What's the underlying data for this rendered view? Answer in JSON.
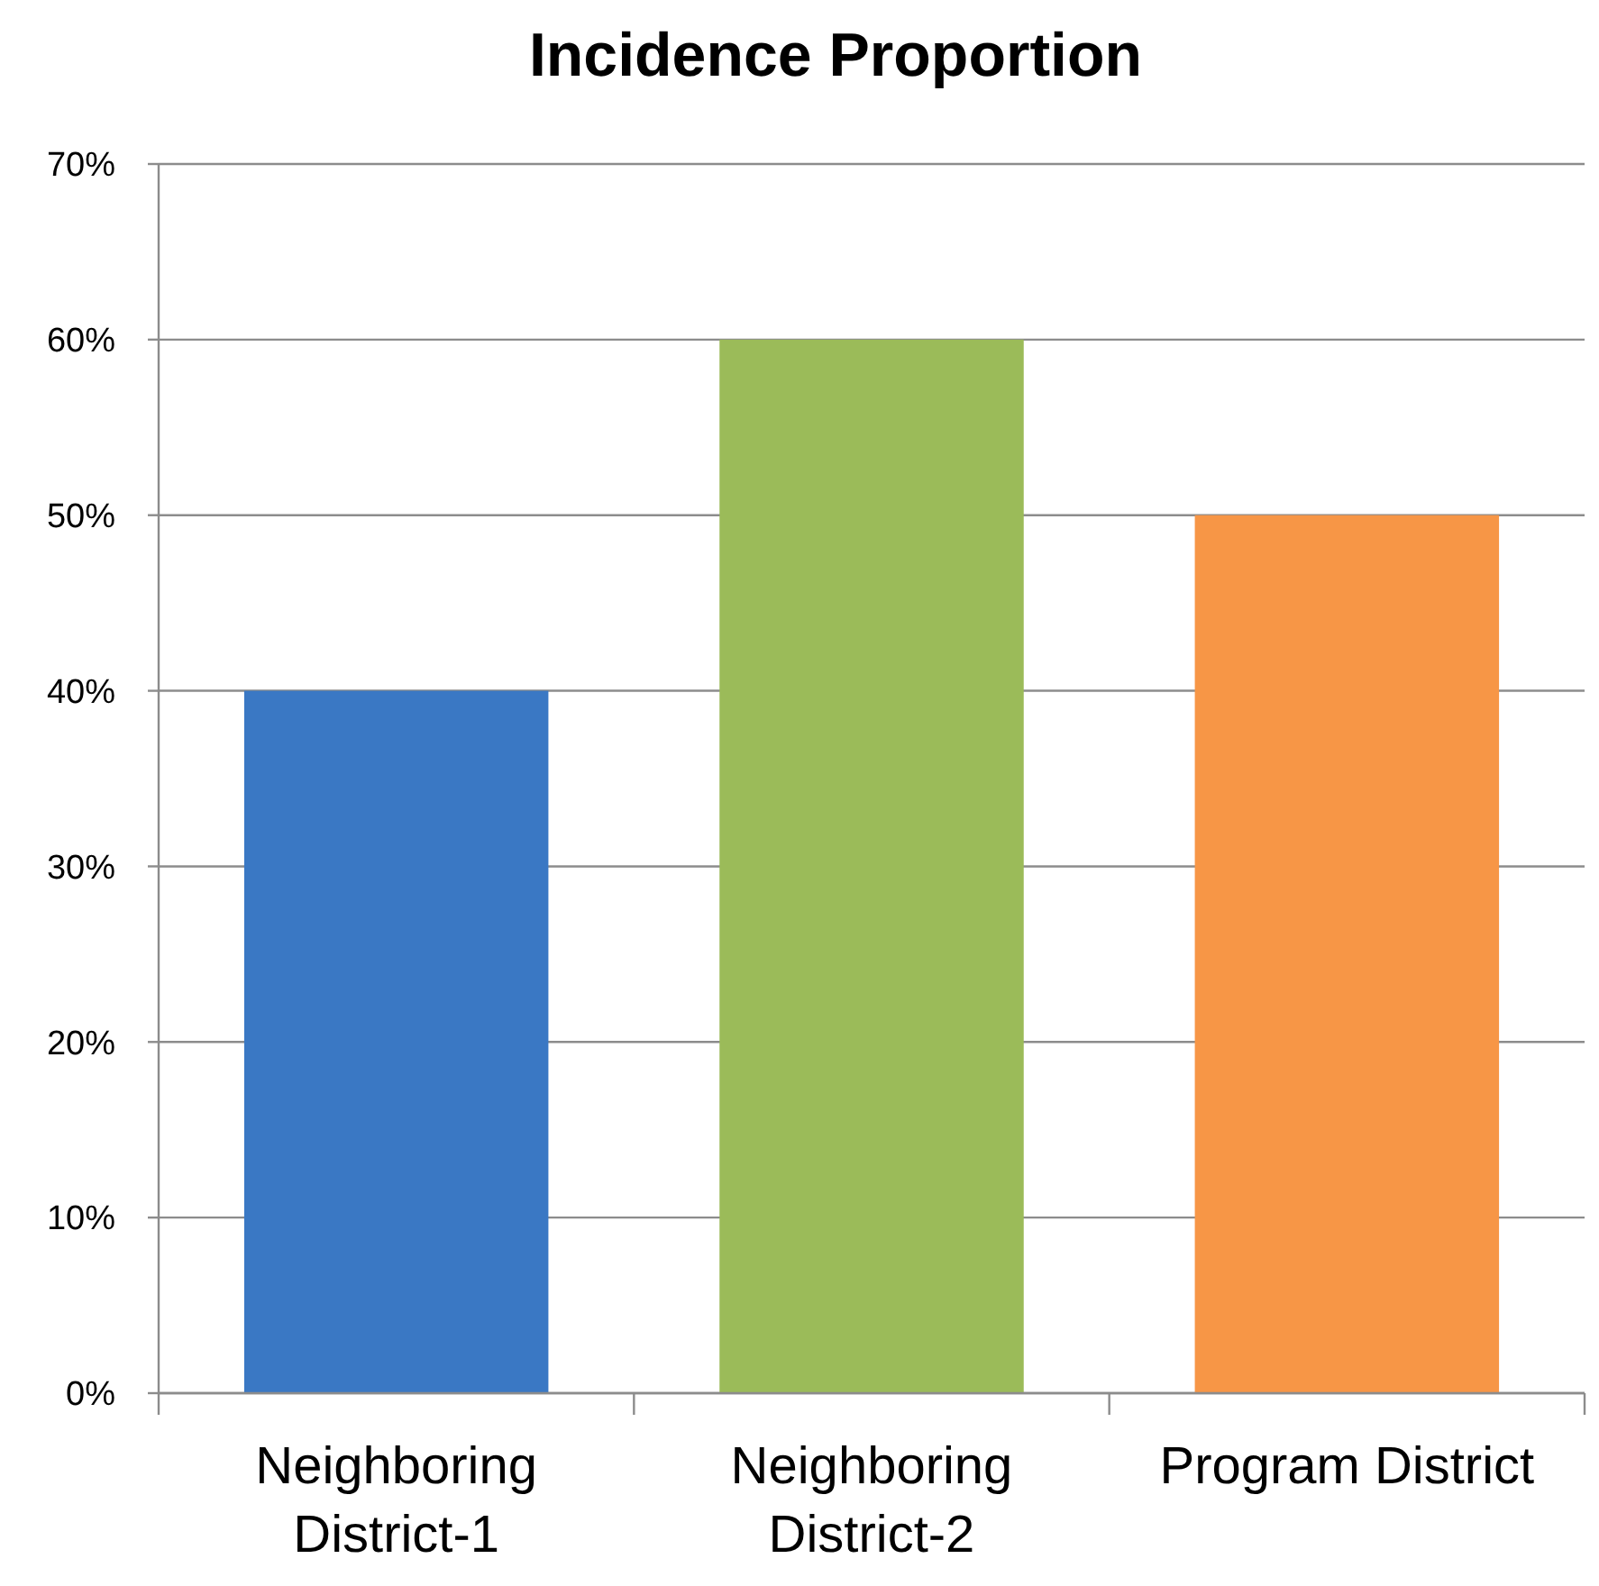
{
  "chart_data": {
    "type": "bar",
    "title": "Incidence Proportion",
    "categories": [
      "Neighboring District-1",
      "Neighboring District-2",
      "Program District"
    ],
    "values": [
      40,
      60,
      50
    ],
    "colors": [
      "#3a78c4",
      "#9bbb59",
      "#f79646"
    ],
    "ylim": [
      0,
      70
    ],
    "yticks": [
      {
        "value": 0,
        "label": "0%"
      },
      {
        "value": 10,
        "label": "10%"
      },
      {
        "value": 20,
        "label": "20%"
      },
      {
        "value": 30,
        "label": "30%"
      },
      {
        "value": 40,
        "label": "40%"
      },
      {
        "value": 50,
        "label": "50%"
      },
      {
        "value": 60,
        "label": "60%"
      },
      {
        "value": 70,
        "label": "70%"
      }
    ],
    "grid": "y"
  }
}
